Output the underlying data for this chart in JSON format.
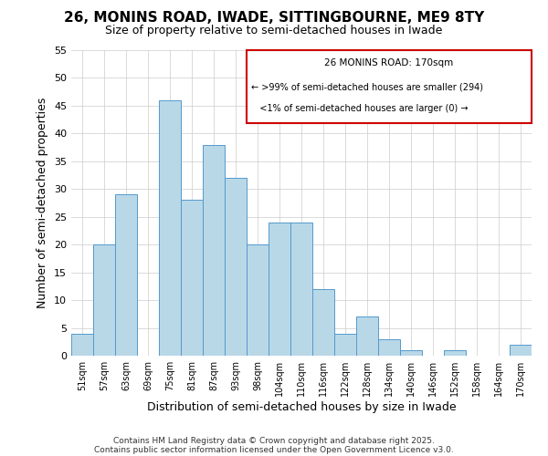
{
  "title": "26, MONINS ROAD, IWADE, SITTINGBOURNE, ME9 8TY",
  "subtitle": "Size of property relative to semi-detached houses in Iwade",
  "xlabel": "Distribution of semi-detached houses by size in Iwade",
  "ylabel": "Number of semi-detached properties",
  "bin_labels": [
    "51sqm",
    "57sqm",
    "63sqm",
    "69sqm",
    "75sqm",
    "81sqm",
    "87sqm",
    "93sqm",
    "98sqm",
    "104sqm",
    "110sqm",
    "116sqm",
    "122sqm",
    "128sqm",
    "134sqm",
    "140sqm",
    "146sqm",
    "152sqm",
    "158sqm",
    "164sqm",
    "170sqm"
  ],
  "bar_heights": [
    4,
    20,
    29,
    0,
    46,
    28,
    38,
    32,
    20,
    24,
    24,
    12,
    4,
    7,
    3,
    1,
    0,
    1,
    0,
    0,
    2
  ],
  "bar_color": "#b8d8e8",
  "bar_edge_color": "#5599cc",
  "highlight_color": "#cc0000",
  "ylim": [
    0,
    55
  ],
  "yticks": [
    0,
    5,
    10,
    15,
    20,
    25,
    30,
    35,
    40,
    45,
    50,
    55
  ],
  "annotation_title": "26 MONINS ROAD: 170sqm",
  "annotation_line1": "← >99% of semi-detached houses are smaller (294)",
  "annotation_line2": "   <1% of semi-detached houses are larger (0) →",
  "footer1": "Contains HM Land Registry data © Crown copyright and database right 2025.",
  "footer2": "Contains public sector information licensed under the Open Government Licence v3.0.",
  "background_color": "#ffffff",
  "grid_color": "#cccccc"
}
